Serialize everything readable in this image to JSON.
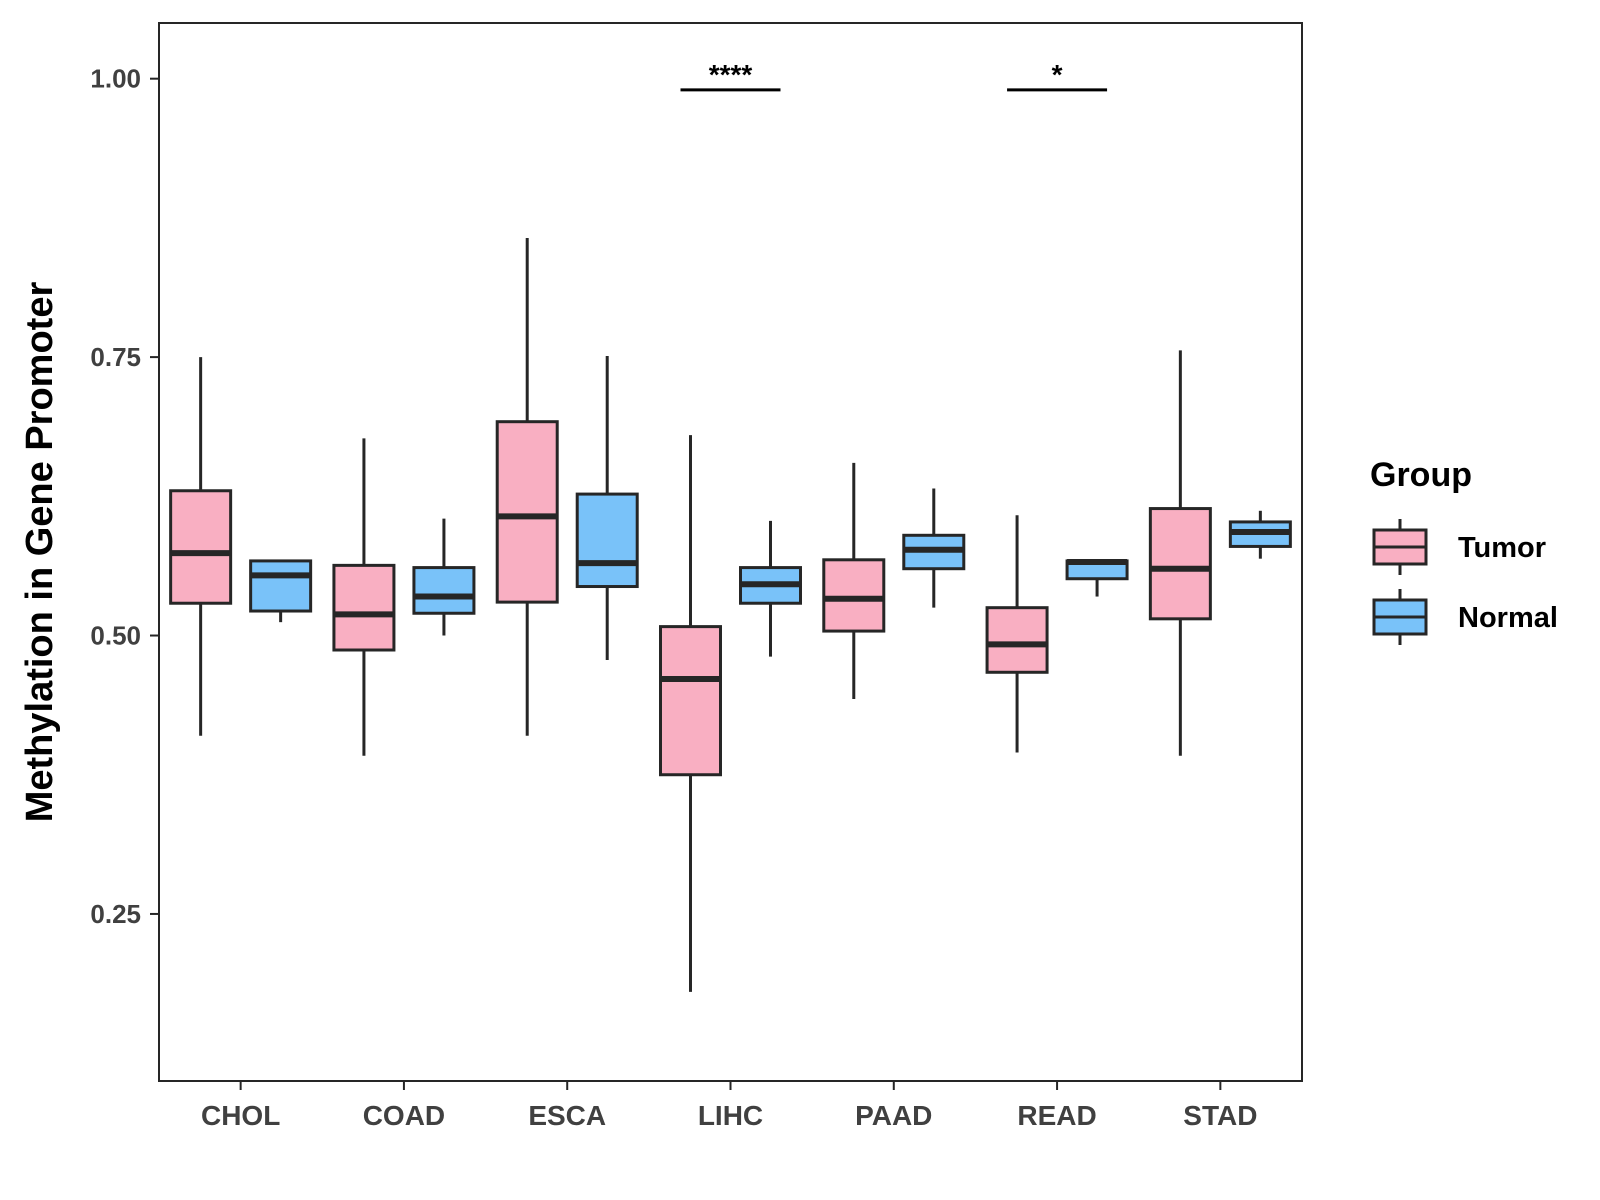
{
  "chart_data": {
    "type": "boxplot",
    "title": "",
    "xlabel": "",
    "ylabel": "Methylation in Gene Promoter",
    "ylim": [
      0.1,
      1.05
    ],
    "yticks": [
      0.25,
      0.5,
      0.75,
      1.0
    ],
    "ytick_labels": [
      "0.25",
      "0.50",
      "0.75",
      "1.00"
    ],
    "categories": [
      "CHOL",
      "COAD",
      "ESCA",
      "LIHC",
      "PAAD",
      "READ",
      "STAD"
    ],
    "legend": {
      "title": "Group",
      "position": "right",
      "entries": [
        "Tumor",
        "Normal"
      ]
    },
    "colors": {
      "Tumor": "#F9AFC2",
      "Normal": "#79C2F9",
      "outline": "#262626"
    },
    "series": [
      {
        "name": "Tumor",
        "boxes": [
          {
            "category": "CHOL",
            "whisker_low": 0.41,
            "q1": 0.529,
            "median": 0.574,
            "q3": 0.63,
            "whisker_high": 0.75
          },
          {
            "category": "COAD",
            "whisker_low": 0.392,
            "q1": 0.487,
            "median": 0.519,
            "q3": 0.563,
            "whisker_high": 0.677
          },
          {
            "category": "ESCA",
            "whisker_low": 0.41,
            "q1": 0.53,
            "median": 0.607,
            "q3": 0.692,
            "whisker_high": 0.857
          },
          {
            "category": "LIHC",
            "whisker_low": 0.18,
            "q1": 0.375,
            "median": 0.461,
            "q3": 0.508,
            "whisker_high": 0.68
          },
          {
            "category": "PAAD",
            "whisker_low": 0.443,
            "q1": 0.504,
            "median": 0.533,
            "q3": 0.568,
            "whisker_high": 0.655
          },
          {
            "category": "READ",
            "whisker_low": 0.395,
            "q1": 0.467,
            "median": 0.492,
            "q3": 0.525,
            "whisker_high": 0.608
          },
          {
            "category": "STAD",
            "whisker_low": 0.392,
            "q1": 0.515,
            "median": 0.56,
            "q3": 0.614,
            "whisker_high": 0.756
          }
        ]
      },
      {
        "name": "Normal",
        "boxes": [
          {
            "category": "CHOL",
            "whisker_low": 0.512,
            "q1": 0.522,
            "median": 0.554,
            "q3": 0.567,
            "whisker_high": 0.567
          },
          {
            "category": "COAD",
            "whisker_low": 0.5,
            "q1": 0.52,
            "median": 0.535,
            "q3": 0.561,
            "whisker_high": 0.605
          },
          {
            "category": "ESCA",
            "whisker_low": 0.478,
            "q1": 0.544,
            "median": 0.565,
            "q3": 0.627,
            "whisker_high": 0.751
          },
          {
            "category": "LIHC",
            "whisker_low": 0.481,
            "q1": 0.529,
            "median": 0.546,
            "q3": 0.561,
            "whisker_high": 0.603
          },
          {
            "category": "PAAD",
            "whisker_low": 0.525,
            "q1": 0.56,
            "median": 0.577,
            "q3": 0.59,
            "whisker_high": 0.632
          },
          {
            "category": "READ",
            "whisker_low": 0.535,
            "q1": 0.551,
            "median": 0.566,
            "q3": 0.567,
            "whisker_high": 0.567
          },
          {
            "category": "STAD",
            "whisker_low": 0.569,
            "q1": 0.58,
            "median": 0.593,
            "q3": 0.602,
            "whisker_high": 0.612
          }
        ]
      }
    ],
    "annotations": [
      {
        "category": "LIHC",
        "label": "****",
        "y": 0.99
      },
      {
        "category": "READ",
        "label": "*",
        "y": 0.99
      }
    ]
  }
}
